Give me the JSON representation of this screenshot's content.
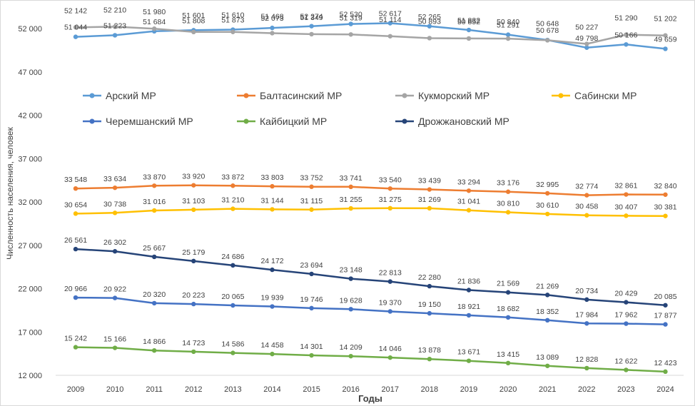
{
  "chart_data": {
    "type": "line",
    "title": "",
    "xlabel": "Годы",
    "ylabel": "Численность населения, человек",
    "ylim": [
      12000,
      52000
    ],
    "yticks": [
      12000,
      17000,
      22000,
      27000,
      32000,
      37000,
      42000,
      47000,
      52000
    ],
    "ytick_labels": [
      "12 000",
      "17 000",
      "22 000",
      "27 000",
      "32 000",
      "37 000",
      "42 000",
      "47 000",
      "52 000"
    ],
    "grid": false,
    "legend_placement": "upper-middle",
    "x": [
      "2009",
      "2010",
      "2011",
      "2012",
      "2013",
      "2014",
      "2015",
      "2016",
      "2017",
      "2018",
      "2019",
      "2020",
      "2021",
      "2022",
      "2023",
      "2024"
    ],
    "series": [
      {
        "name": "Арский МР",
        "color": "#5b9bd5",
        "values": [
          51044,
          51223,
          51684,
          51808,
          51873,
          52073,
          52274,
          52530,
          52617,
          52265,
          51832,
          51291,
          50678,
          49798,
          50166,
          49659
        ],
        "labels": [
          "51 044",
          "51 223",
          "51 684",
          "51 808",
          "51 873",
          "52 073",
          "52 274",
          "52 530",
          "52 617",
          "52 265",
          "51 832",
          "51 291",
          "50 678",
          "49 798",
          "50 166",
          "49 659"
        ]
      },
      {
        "name": "Балтасинский МР",
        "color": "#ed7d31",
        "values": [
          33548,
          33634,
          33870,
          33920,
          33872,
          33803,
          33752,
          33741,
          33540,
          33439,
          33294,
          33176,
          32995,
          32774,
          32861,
          32840
        ],
        "labels": [
          "33 548",
          "33 634",
          "33 870",
          "33 920",
          "33 872",
          "33 803",
          "33 752",
          "33 741",
          "33 540",
          "33 439",
          "33 294",
          "33 176",
          "32 995",
          "32 774",
          "32 861",
          "32 840"
        ]
      },
      {
        "name": "Кукморский МР",
        "color": "#a5a5a5",
        "values": [
          52142,
          52210,
          51980,
          51601,
          51610,
          51468,
          51349,
          51319,
          51114,
          50893,
          50852,
          50840,
          50648,
          50227,
          51290,
          51202
        ],
        "labels": [
          "52 142",
          "52 210",
          "51 980",
          "51 601",
          "51 610",
          "51 468",
          "51 349",
          "51 319",
          "51 114",
          "50 893",
          "50 852",
          "50 840",
          "50 648",
          "50 227",
          "51 290",
          "51 202"
        ]
      },
      {
        "name": "Сабински МР",
        "color": "#ffc000",
        "values": [
          30654,
          30738,
          31016,
          31103,
          31210,
          31144,
          31115,
          31255,
          31275,
          31269,
          31041,
          30810,
          30610,
          30458,
          30407,
          30381
        ],
        "labels": [
          "30 654",
          "30 738",
          "31 016",
          "31 103",
          "31 210",
          "31 144",
          "31 115",
          "31 255",
          "31 275",
          "31 269",
          "31 041",
          "30 810",
          "30 610",
          "30 458",
          "30 407",
          "30 381"
        ]
      },
      {
        "name": "Черемшанский МР",
        "color": "#4472c4",
        "values": [
          20966,
          20922,
          20320,
          20223,
          20065,
          19939,
          19746,
          19628,
          19370,
          19150,
          18921,
          18682,
          18352,
          17984,
          17962,
          17877
        ],
        "labels": [
          "20 966",
          "20 922",
          "20 320",
          "20 223",
          "20 065",
          "19 939",
          "19 746",
          "19 628",
          "19 370",
          "19 150",
          "18 921",
          "18 682",
          "18 352",
          "17 984",
          "17 962",
          "17 877"
        ]
      },
      {
        "name": "Кайбицкий МР",
        "color": "#70ad47",
        "values": [
          15242,
          15166,
          14866,
          14723,
          14586,
          14458,
          14301,
          14209,
          14046,
          13878,
          13671,
          13415,
          13089,
          12828,
          12622,
          12423
        ],
        "labels": [
          "15 242",
          "15 166",
          "14 866",
          "14 723",
          "14 586",
          "14 458",
          "14 301",
          "14 209",
          "14 046",
          "13 878",
          "13 671",
          "13 415",
          "13 089",
          "12 828",
          "12 622",
          "12 423"
        ]
      },
      {
        "name": "Дрожжановский МР",
        "color": "#264478",
        "values": [
          26561,
          26302,
          25667,
          25179,
          24686,
          24172,
          23694,
          23148,
          22813,
          22280,
          21836,
          21569,
          21269,
          20734,
          20429,
          20085
        ],
        "labels": [
          "26 561",
          "26 302",
          "25 667",
          "25 179",
          "24 686",
          "24 172",
          "23 694",
          "23 148",
          "22 813",
          "22 280",
          "21 836",
          "21 569",
          "21 269",
          "20 734",
          "20 429",
          "20 085"
        ]
      }
    ]
  }
}
